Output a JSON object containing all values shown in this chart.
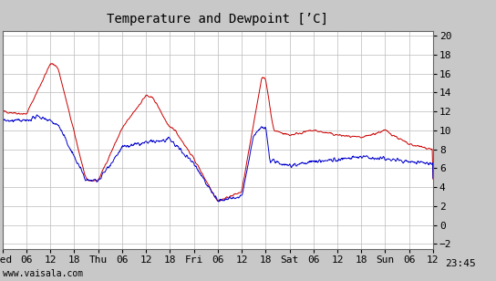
{
  "title": "Temperature and Dewpoint [’C]",
  "ylabel_right_ticks": [
    -2,
    0,
    2,
    4,
    6,
    8,
    10,
    12,
    14,
    16,
    18,
    20
  ],
  "ylim": [
    -2.5,
    20.5
  ],
  "xlim": [
    0,
    108
  ],
  "watermark": "www.vaisala.com",
  "temp_color": "#cc0000",
  "dewpoint_color": "#0000cc",
  "background_color": "#c8c8c8",
  "plot_bg_color": "#ffffff",
  "grid_color": "#bbbbbb",
  "title_fontsize": 10,
  "tick_fontsize": 8,
  "watermark_fontsize": 7,
  "line_width": 0.7
}
